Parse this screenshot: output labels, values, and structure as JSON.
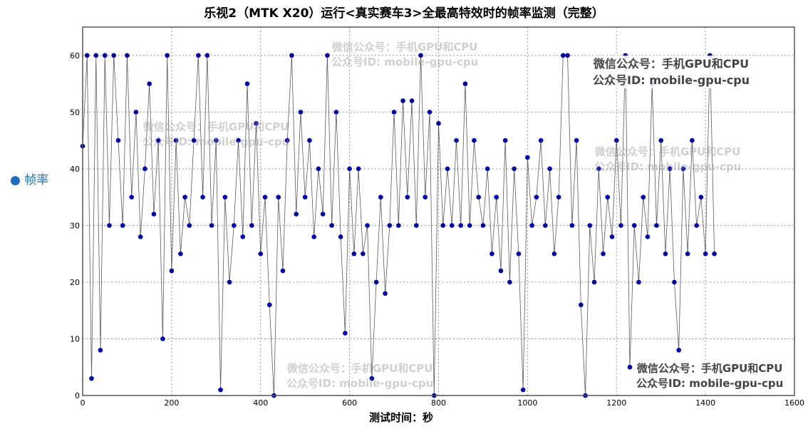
{
  "chart_data": {
    "type": "line",
    "title": "乐视2（MTK X20）运行<真实赛车3>全最高特效时的帧率监测（完整）",
    "xlabel": "测试时间：秒",
    "ylabel": "",
    "xlim": [
      0,
      1600
    ],
    "ylim": [
      0,
      65
    ],
    "xticks": [
      0,
      200,
      400,
      600,
      800,
      1000,
      1200,
      1400,
      1600
    ],
    "yticks": [
      0,
      10,
      20,
      30,
      40,
      50,
      60
    ],
    "grid": true,
    "legend_position": "left",
    "series": [
      {
        "name": "帧率",
        "color": "#0000b4",
        "marker": "circle",
        "line_color": "#333333",
        "x": [
          0,
          10,
          20,
          30,
          40,
          50,
          60,
          70,
          80,
          90,
          100,
          110,
          120,
          130,
          140,
          150,
          160,
          170,
          180,
          190,
          200,
          210,
          220,
          230,
          240,
          250,
          260,
          270,
          280,
          290,
          300,
          310,
          320,
          330,
          340,
          350,
          360,
          370,
          380,
          390,
          400,
          410,
          420,
          430,
          440,
          450,
          460,
          470,
          480,
          490,
          500,
          510,
          520,
          530,
          540,
          550,
          560,
          570,
          580,
          590,
          600,
          610,
          620,
          630,
          640,
          650,
          660,
          670,
          680,
          690,
          700,
          710,
          720,
          730,
          740,
          750,
          760,
          770,
          780,
          790,
          800,
          810,
          820,
          830,
          840,
          850,
          860,
          870,
          880,
          890,
          900,
          910,
          920,
          930,
          940,
          950,
          960,
          970,
          980,
          990,
          1000,
          1010,
          1020,
          1030,
          1040,
          1050,
          1060,
          1070,
          1080,
          1090,
          1100,
          1110,
          1120,
          1130,
          1140,
          1150,
          1160,
          1170,
          1180,
          1190,
          1200,
          1210,
          1220,
          1230,
          1240,
          1250,
          1260,
          1270,
          1280,
          1290,
          1300,
          1310,
          1320,
          1330,
          1340,
          1350,
          1360,
          1370,
          1380,
          1390,
          1400,
          1410,
          1420
        ],
        "values": [
          44,
          60,
          3,
          60,
          8,
          60,
          30,
          60,
          45,
          30,
          60,
          35,
          50,
          28,
          40,
          55,
          32,
          45,
          10,
          60,
          22,
          45,
          25,
          35,
          30,
          45,
          60,
          35,
          60,
          30,
          45,
          1,
          35,
          20,
          30,
          45,
          28,
          55,
          30,
          48,
          25,
          35,
          16,
          0,
          35,
          22,
          45,
          60,
          32,
          50,
          35,
          45,
          28,
          40,
          32,
          60,
          30,
          50,
          28,
          11,
          40,
          25,
          40,
          25,
          30,
          3,
          20,
          35,
          18,
          30,
          50,
          30,
          52,
          35,
          52,
          30,
          60,
          35,
          50,
          0,
          48,
          30,
          40,
          30,
          45,
          30,
          55,
          30,
          45,
          35,
          30,
          40,
          25,
          35,
          22,
          45,
          20,
          40,
          25,
          1,
          42,
          30,
          35,
          45,
          30,
          40,
          25,
          35,
          60,
          60,
          30,
          45,
          16,
          0,
          30,
          20,
          40,
          25,
          35,
          28,
          45,
          30,
          60,
          5,
          30,
          20,
          35,
          28,
          55,
          30,
          45,
          25,
          40,
          20,
          8,
          40,
          25,
          45,
          30,
          35,
          25,
          60,
          25
        ]
      }
    ]
  },
  "watermarks": [
    {
      "line1": "微信公众号：手机GPU和CPU",
      "line2": "公众号ID: mobile-gpu-cpu"
    }
  ]
}
